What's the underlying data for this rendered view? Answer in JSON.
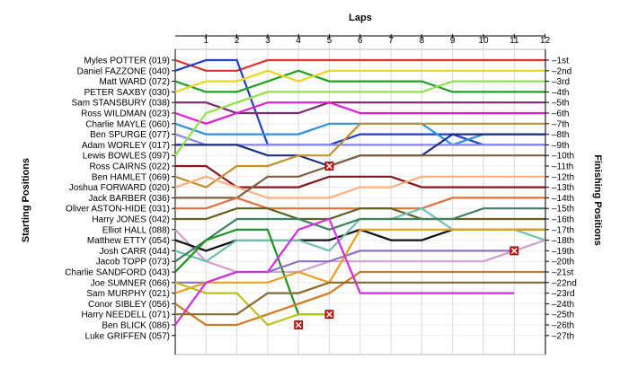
{
  "chart_data": {
    "type": "line",
    "title": "",
    "xlabel": "Laps",
    "ylabel_left": "Starting Positions",
    "ylabel_right": "Finishing Positions",
    "x": [
      0,
      1,
      2,
      3,
      4,
      5,
      6,
      7,
      8,
      9,
      10,
      11,
      12
    ],
    "x_tick_labels": [
      "1",
      "2",
      "3",
      "4",
      "5",
      "6",
      "7",
      "8",
      "9",
      "10",
      "11",
      "12"
    ],
    "y_range": [
      1,
      27
    ],
    "finishing_labels": [
      "1st",
      "2nd",
      "3rd",
      "4th",
      "5th",
      "6th",
      "7th",
      "8th",
      "9th",
      "10th",
      "11th",
      "12th",
      "13th",
      "14th",
      "15th",
      "16th",
      "17th",
      "18th",
      "19th",
      "20th",
      "21st",
      "22nd",
      "23rd",
      "24th",
      "25th",
      "26th",
      "27th"
    ],
    "grid": true,
    "series": [
      {
        "name": "Myles POTTER (019)",
        "color": "#e03030",
        "positions": [
          1,
          2,
          2,
          1,
          1,
          1,
          1,
          1,
          1,
          1,
          1,
          1,
          1
        ]
      },
      {
        "name": "Daniel FAZZONE (040)",
        "color": "#2040c8",
        "positions": [
          2,
          1,
          1,
          9,
          9,
          9,
          8,
          8,
          8,
          8,
          9,
          9,
          9
        ]
      },
      {
        "name": "Matt WARD (072)",
        "color": "#20a020",
        "positions": [
          3,
          4,
          4,
          3,
          2,
          3,
          3,
          3,
          3,
          4,
          4,
          4,
          4
        ]
      },
      {
        "name": "PETER SAXBY (030)",
        "color": "#e8d820",
        "positions": [
          4,
          3,
          3,
          2,
          3,
          2,
          2,
          2,
          2,
          2,
          2,
          2,
          2
        ]
      },
      {
        "name": "Sam STANSBURY (038)",
        "color": "#7a2a70",
        "positions": [
          5,
          5,
          6,
          6,
          6,
          5,
          5,
          5,
          5,
          5,
          5,
          5,
          5
        ]
      },
      {
        "name": "Ross WILDMAN (023)",
        "color": "#e020d0",
        "positions": [
          6,
          7,
          6,
          5,
          5,
          5,
          6,
          6,
          6,
          6,
          6,
          6,
          6
        ]
      },
      {
        "name": "Charlie MAYLE (060)",
        "color": "#3090e0",
        "positions": [
          7,
          8,
          8,
          8,
          8,
          7,
          7,
          7,
          7,
          9,
          8,
          8,
          8
        ]
      },
      {
        "name": "Ben SPURGE (077)",
        "color": "#8888e8",
        "positions": [
          8,
          9,
          9,
          9,
          9,
          9,
          9,
          9,
          9,
          9,
          9,
          9,
          9
        ]
      },
      {
        "name": "Adam WORLEY (017)",
        "color": "#203080",
        "positions": [
          9,
          9,
          9,
          10,
          10,
          11,
          10,
          10,
          10,
          8,
          8,
          8,
          8
        ]
      },
      {
        "name": "Lewis BOWLES (097)",
        "color": "#90e050",
        "positions": [
          10,
          6,
          5,
          4,
          4,
          4,
          4,
          4,
          4,
          3,
          3,
          3,
          3
        ]
      },
      {
        "name": "Ross CAIRNS (022)",
        "color": "#801820",
        "positions": [
          11,
          11,
          13,
          13,
          13,
          12,
          12,
          12,
          13,
          13,
          13,
          13,
          13
        ]
      },
      {
        "name": "Ben HAMLET (069)",
        "color": "#c09030",
        "positions": [
          12,
          13,
          11,
          11,
          10,
          10,
          7,
          7,
          7,
          7,
          7,
          7,
          7
        ]
      },
      {
        "name": "Joshua FORWARD (020)",
        "color": "#ffb080",
        "positions": [
          13,
          12,
          13,
          14,
          14,
          14,
          13,
          13,
          12,
          12,
          12,
          12,
          12
        ]
      },
      {
        "name": "Jack BARBER (036)",
        "color": "#806040",
        "positions": [
          14,
          14,
          14,
          12,
          12,
          11,
          10,
          10,
          10,
          10,
          10,
          10,
          10
        ]
      },
      {
        "name": "Oliver ASTON-HIDE (031)",
        "color": "#e07040",
        "positions": [
          15,
          15,
          14,
          15,
          15,
          15,
          15,
          15,
          15,
          14,
          14,
          14,
          14
        ]
      },
      {
        "name": "Harry JONES (042)",
        "color": "#606020",
        "positions": [
          16,
          16,
          15,
          15,
          16,
          16,
          15,
          15,
          16,
          16,
          16,
          16,
          16
        ]
      },
      {
        "name": "Elliot HALL (088)",
        "color": "#d0a0d0",
        "positions": [
          17,
          20,
          21,
          21,
          21,
          20,
          20,
          20,
          20,
          20,
          20,
          19,
          18
        ]
      },
      {
        "name": "Matthew ETTY (054)",
        "color": "#101010",
        "positions": [
          18,
          19,
          18,
          18,
          18,
          18,
          17,
          18,
          18,
          17,
          17,
          17,
          17
        ]
      },
      {
        "name": "Josh CARR (044)",
        "color": "#70c0b0",
        "positions": [
          19,
          20,
          18,
          18,
          18,
          19,
          16,
          16,
          15,
          17,
          17,
          17,
          18
        ]
      },
      {
        "name": "Jacob TOPP (073)",
        "color": "#408060",
        "positions": [
          20,
          18,
          16,
          16,
          16,
          17,
          16,
          16,
          16,
          16,
          15,
          15,
          15
        ]
      },
      {
        "name": "Charlie SANDFORD (043)",
        "color": "#209020",
        "positions": [
          21,
          18,
          17,
          17,
          25,
          25,
          null,
          null,
          null,
          null,
          null,
          null,
          null
        ]
      },
      {
        "name": "Joe SUMNER (066)",
        "color": "#9070c0",
        "positions": [
          22,
          22,
          21,
          21,
          20,
          20,
          19,
          19,
          19,
          19,
          19,
          19,
          null
        ]
      },
      {
        "name": "Sam MURPHY (021)",
        "color": "#e8a020",
        "positions": [
          23,
          22,
          22,
          22,
          21,
          22,
          17,
          17,
          17,
          17,
          17,
          17,
          17
        ]
      },
      {
        "name": "Conor SIBLEY (056)",
        "color": "#d07a20",
        "positions": [
          24,
          26,
          26,
          25,
          24,
          23,
          21,
          21,
          21,
          21,
          21,
          21,
          21
        ]
      },
      {
        "name": "Harry NEEDELL (071)",
        "color": "#c0c020",
        "positions": [
          22,
          23,
          23,
          26,
          25,
          25,
          null,
          null,
          null,
          null,
          null,
          null,
          null
        ]
      },
      {
        "name": "Ben BLICK (086)",
        "color": "#d030e0",
        "positions": [
          26,
          22,
          21,
          21,
          17,
          16,
          23,
          23,
          23,
          23,
          23,
          23,
          null
        ]
      },
      {
        "name": "Luke GRIFFEN (057)",
        "color": "#8a6a30",
        "positions": [
          25,
          25,
          25,
          23,
          23,
          22,
          22,
          22,
          22,
          22,
          22,
          22,
          22
        ]
      }
    ],
    "retirements": [
      {
        "lap": 4,
        "position": 26
      },
      {
        "lap": 5,
        "position": 11
      },
      {
        "lap": 5,
        "position": 25
      },
      {
        "lap": 11,
        "position": 19
      }
    ]
  }
}
